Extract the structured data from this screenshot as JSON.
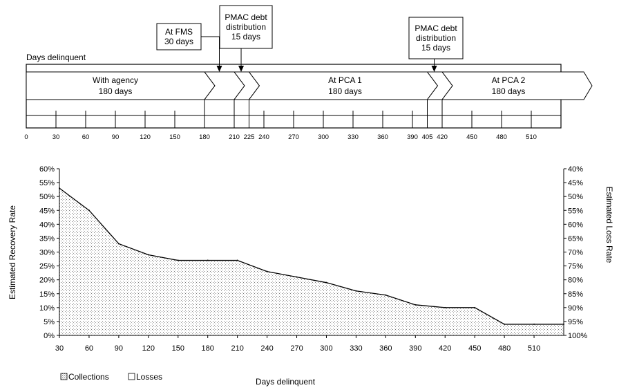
{
  "chart_data": [
    {
      "type": "timeline",
      "title": "Days delinquent",
      "ticks": [
        0,
        30,
        60,
        90,
        120,
        150,
        180,
        210,
        225,
        240,
        270,
        300,
        330,
        360,
        390,
        405,
        420,
        450,
        480,
        510
      ],
      "tick_labels": [
        "0",
        "30",
        "60",
        "90",
        "120",
        "150",
        "180",
        "210",
        "225",
        "240",
        "270",
        "300",
        "330",
        "360",
        "390",
        "405",
        "420",
        "450",
        "480",
        "510"
      ],
      "x_range": [
        0,
        540
      ],
      "segments": [
        {
          "label_line1": "With agency",
          "label_line2": "180 days",
          "start": 0,
          "end": 180
        },
        {
          "label_line1": "",
          "label_line2": "",
          "start": 180,
          "end": 210
        },
        {
          "label_line1": "",
          "label_line2": "",
          "start": 210,
          "end": 225
        },
        {
          "label_line1": "At PCA 1",
          "label_line2": "180 days",
          "start": 225,
          "end": 405
        },
        {
          "label_line1": "",
          "label_line2": "",
          "start": 405,
          "end": 420
        },
        {
          "label_line1": "At PCA 2",
          "label_line2": "180 days",
          "start": 420,
          "end": 540
        }
      ],
      "callouts": [
        {
          "lines": [
            "At FMS",
            "30 days"
          ],
          "day": 195
        },
        {
          "lines": [
            "PMAC debt",
            "distribution",
            "15 days"
          ],
          "day": 217
        },
        {
          "lines": [
            "PMAC debt",
            "distribution",
            "15 days"
          ],
          "day": 412
        }
      ]
    },
    {
      "type": "area",
      "xlabel": "Days delinquent",
      "ylabel": "Estimated Recovery Rate",
      "ylabel_right": "Estimated Loss Rate",
      "x": [
        30,
        60,
        90,
        120,
        150,
        180,
        210,
        240,
        270,
        300,
        330,
        360,
        390,
        420,
        450,
        480,
        510,
        540
      ],
      "values": [
        53,
        45,
        33,
        29,
        27,
        27,
        27,
        23,
        21,
        19,
        16,
        14.5,
        11,
        10,
        10,
        4,
        4,
        4
      ],
      "xlim": [
        30,
        540
      ],
      "ylim": [
        0,
        60
      ],
      "x_tick_labels": [
        "30",
        "60",
        "90",
        "120",
        "150",
        "180",
        "210",
        "240",
        "270",
        "300",
        "330",
        "360",
        "390",
        "420",
        "450",
        "480",
        "510"
      ],
      "y_tick_labels": [
        "0%",
        "5%",
        "10%",
        "15%",
        "20%",
        "25%",
        "30%",
        "35%",
        "40%",
        "45%",
        "50%",
        "55%",
        "60%"
      ],
      "y_right_tick_labels": [
        "100%",
        "95%",
        "90%",
        "85%",
        "80%",
        "75%",
        "70%",
        "65%",
        "60%",
        "55%",
        "50%",
        "45%",
        "40%"
      ],
      "legend": [
        "Collections",
        "Losses"
      ],
      "legend_position": "bottom-left"
    }
  ]
}
